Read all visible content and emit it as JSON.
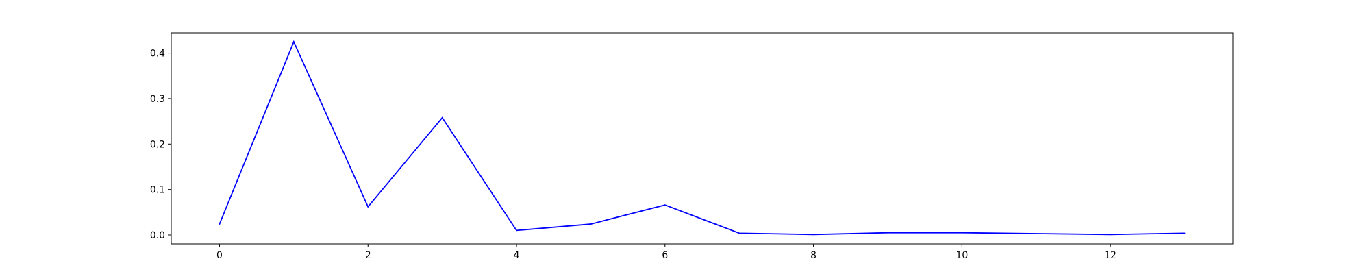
{
  "chart_data": {
    "type": "line",
    "title": "",
    "xlabel": "",
    "ylabel": "",
    "x": [
      0,
      1,
      2,
      3,
      4,
      5,
      6,
      7,
      8,
      9,
      10,
      11,
      12,
      13
    ],
    "series": [
      {
        "values": [
          0.024,
          0.425,
          0.062,
          0.258,
          0.01,
          0.024,
          0.066,
          0.004,
          0.001,
          0.005,
          0.005,
          0.003,
          0.001,
          0.004
        ],
        "color": "#0000ff"
      }
    ],
    "xlim": [
      -0.65,
      13.65
    ],
    "ylim": [
      -0.0196,
      0.4446
    ],
    "xticks": [
      0,
      2,
      4,
      6,
      8,
      10,
      12
    ],
    "xtick_labels": [
      "0",
      "2",
      "4",
      "6",
      "8",
      "10",
      "12"
    ],
    "yticks": [
      0.0,
      0.1,
      0.2,
      0.3,
      0.4
    ],
    "ytick_labels": [
      "0.0",
      "0.1",
      "0.2",
      "0.3",
      "0.4"
    ],
    "grid": false,
    "legend": "none"
  }
}
